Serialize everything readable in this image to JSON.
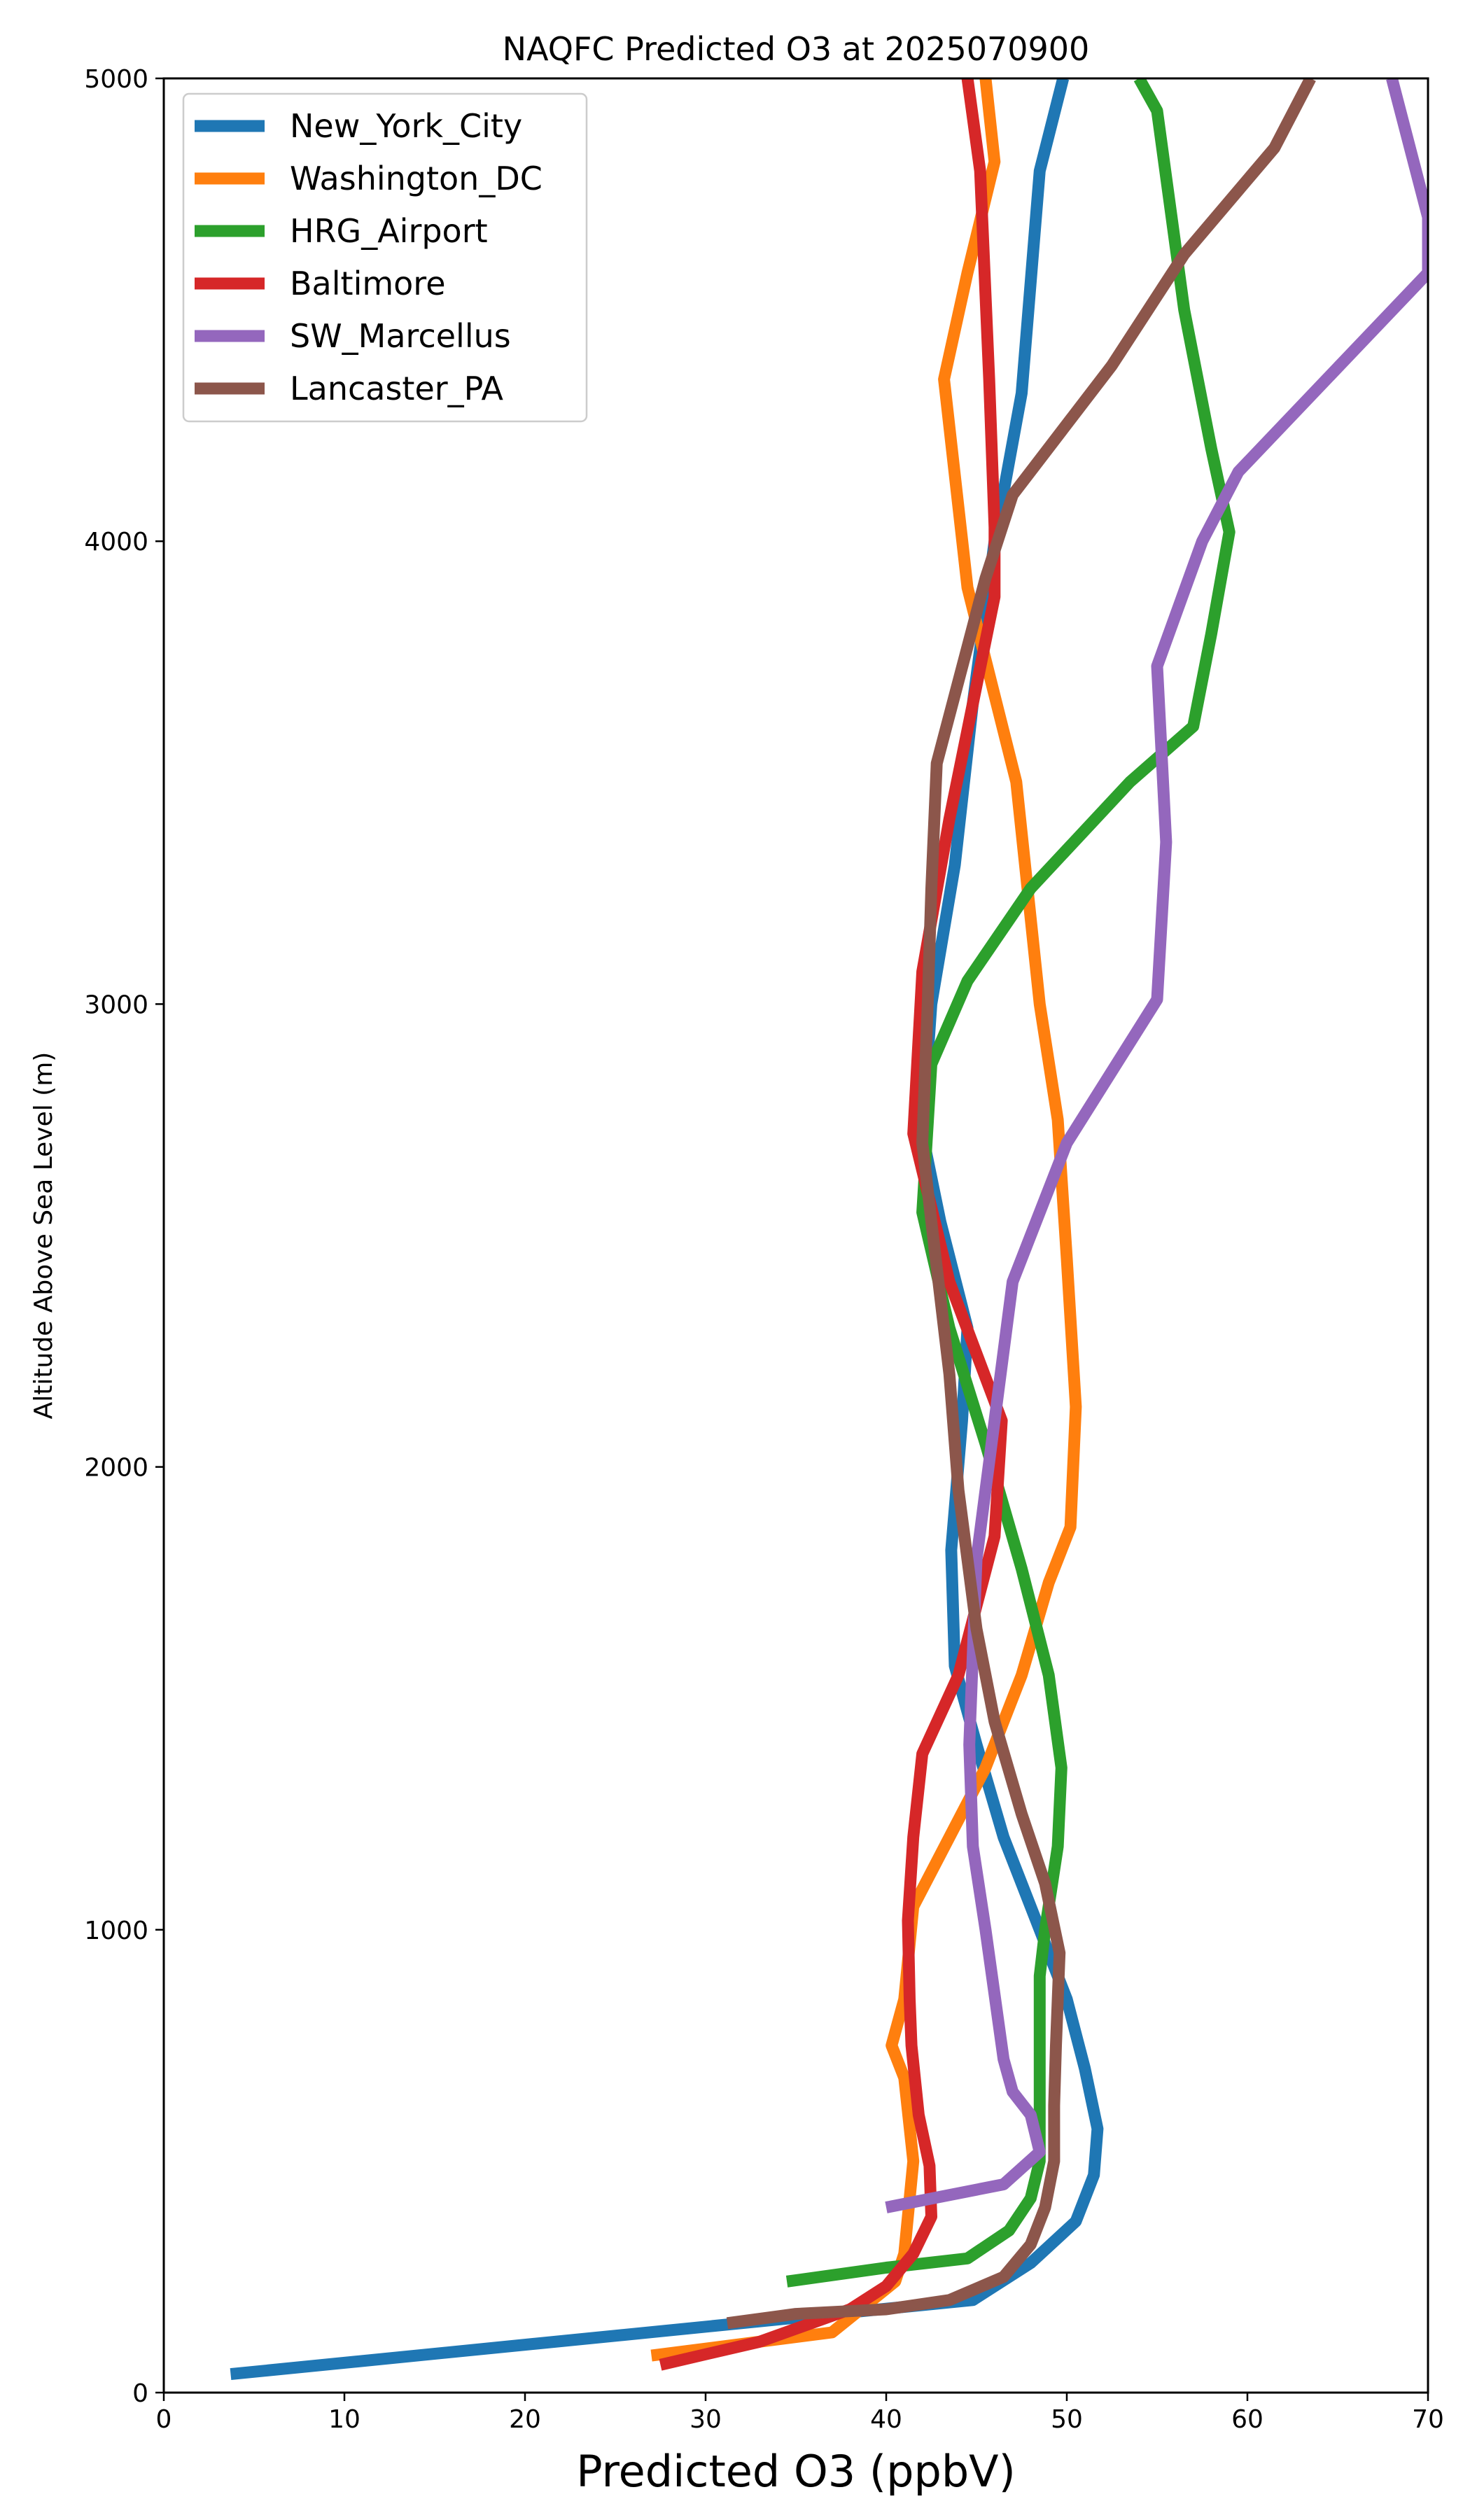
{
  "chart_data": {
    "type": "line",
    "title": "NAQFC Predicted O3 at 2025070900",
    "xlabel": "Predicted O3 (ppbV)",
    "ylabel": "Altitude Above Sea Level (m)",
    "xlim": [
      0,
      70
    ],
    "ylim": [
      0,
      5000
    ],
    "x_ticks": [
      0,
      10,
      20,
      30,
      40,
      50,
      60,
      70
    ],
    "y_ticks": [
      0,
      1000,
      2000,
      3000,
      4000,
      5000
    ],
    "grid": false,
    "legend_position": "top-left",
    "series": [
      {
        "name": "New_York_City",
        "color": "#1f77b4",
        "points": [
          [
            3.7,
            40
          ],
          [
            44.8,
            200
          ],
          [
            48.0,
            280
          ],
          [
            50.5,
            370
          ],
          [
            51.5,
            470
          ],
          [
            51.7,
            570
          ],
          [
            51.0,
            700
          ],
          [
            50.0,
            850
          ],
          [
            48.5,
            1000
          ],
          [
            46.5,
            1200
          ],
          [
            45.0,
            1400
          ],
          [
            43.8,
            1570
          ],
          [
            43.6,
            1820
          ],
          [
            44.2,
            2100
          ],
          [
            44.5,
            2300
          ],
          [
            43.0,
            2530
          ],
          [
            42.0,
            2720
          ],
          [
            42.5,
            3000
          ],
          [
            43.8,
            3300
          ],
          [
            44.8,
            3650
          ],
          [
            46.0,
            4000
          ],
          [
            47.5,
            4320
          ],
          [
            48.5,
            4800
          ],
          [
            49.8,
            5000
          ]
        ]
      },
      {
        "name": "Washington_DC",
        "color": "#ff7f0e",
        "points": [
          [
            27.0,
            80
          ],
          [
            37.0,
            130
          ],
          [
            40.5,
            240
          ],
          [
            41.0,
            300
          ],
          [
            41.5,
            500
          ],
          [
            41.0,
            680
          ],
          [
            40.3,
            750
          ],
          [
            41.0,
            850
          ],
          [
            41.5,
            1050
          ],
          [
            43.5,
            1200
          ],
          [
            45.5,
            1350
          ],
          [
            47.5,
            1550
          ],
          [
            49.0,
            1750
          ],
          [
            50.2,
            1870
          ],
          [
            50.5,
            2130
          ],
          [
            50.0,
            2450
          ],
          [
            49.5,
            2750
          ],
          [
            48.5,
            3000
          ],
          [
            47.2,
            3480
          ],
          [
            44.5,
            3900
          ],
          [
            43.2,
            4350
          ],
          [
            44.5,
            4580
          ],
          [
            46.0,
            4820
          ],
          [
            45.5,
            5000
          ]
        ]
      },
      {
        "name": "HRG_Airport",
        "color": "#2ca02c",
        "points": [
          [
            34.5,
            240
          ],
          [
            40.0,
            270
          ],
          [
            44.5,
            290
          ],
          [
            46.8,
            350
          ],
          [
            48.0,
            420
          ],
          [
            48.5,
            500
          ],
          [
            48.5,
            620
          ],
          [
            48.5,
            750
          ],
          [
            48.5,
            900
          ],
          [
            48.8,
            1000
          ],
          [
            49.5,
            1180
          ],
          [
            49.7,
            1350
          ],
          [
            49.0,
            1550
          ],
          [
            47.5,
            1780
          ],
          [
            45.5,
            2050
          ],
          [
            43.5,
            2300
          ],
          [
            42.0,
            2550
          ],
          [
            42.5,
            2870
          ],
          [
            44.5,
            3050
          ],
          [
            48.0,
            3250
          ],
          [
            53.5,
            3480
          ],
          [
            57.0,
            3600
          ],
          [
            58.0,
            3800
          ],
          [
            59.0,
            4020
          ],
          [
            58.0,
            4200
          ],
          [
            56.5,
            4500
          ],
          [
            55.0,
            4930
          ],
          [
            54.0,
            5000
          ]
        ]
      },
      {
        "name": "Baltimore",
        "color": "#d62728",
        "points": [
          [
            27.5,
            60
          ],
          [
            33.0,
            110
          ],
          [
            38.0,
            180
          ],
          [
            40.0,
            230
          ],
          [
            41.5,
            300
          ],
          [
            42.5,
            380
          ],
          [
            42.4,
            490
          ],
          [
            41.8,
            600
          ],
          [
            41.4,
            750
          ],
          [
            41.3,
            850
          ],
          [
            41.2,
            1020
          ],
          [
            41.5,
            1200
          ],
          [
            42.0,
            1380
          ],
          [
            44.0,
            1550
          ],
          [
            46.0,
            1850
          ],
          [
            46.4,
            2100
          ],
          [
            43.5,
            2400
          ],
          [
            41.5,
            2720
          ],
          [
            42.0,
            3070
          ],
          [
            43.5,
            3400
          ],
          [
            46.0,
            3880
          ],
          [
            46.0,
            4030
          ],
          [
            45.7,
            4350
          ],
          [
            45.2,
            4800
          ],
          [
            44.5,
            5000
          ]
        ]
      },
      {
        "name": "SW_Marcellus",
        "color": "#9467bd",
        "points": [
          [
            40.0,
            400
          ],
          [
            46.5,
            450
          ],
          [
            48.5,
            520
          ],
          [
            48.0,
            600
          ],
          [
            47.0,
            650
          ],
          [
            46.5,
            720
          ],
          [
            45.5,
            1000
          ],
          [
            44.8,
            1180
          ],
          [
            44.6,
            1400
          ],
          [
            45.0,
            1800
          ],
          [
            46.0,
            2100
          ],
          [
            47.0,
            2400
          ],
          [
            50.0,
            2700
          ],
          [
            55.0,
            3010
          ],
          [
            55.5,
            3350
          ],
          [
            55.0,
            3730
          ],
          [
            57.5,
            4000
          ],
          [
            59.5,
            4150
          ],
          [
            70.0,
            4580
          ],
          [
            70.0,
            4700
          ],
          [
            68.0,
            5000
          ]
        ]
      },
      {
        "name": "Lancaster_PA",
        "color": "#8c564b",
        "points": [
          [
            31.2,
            150
          ],
          [
            35.0,
            170
          ],
          [
            40.0,
            180
          ],
          [
            43.5,
            200
          ],
          [
            46.5,
            250
          ],
          [
            48.0,
            320
          ],
          [
            48.8,
            400
          ],
          [
            49.3,
            500
          ],
          [
            49.3,
            620
          ],
          [
            49.4,
            750
          ],
          [
            49.5,
            850
          ],
          [
            49.6,
            950
          ],
          [
            48.8,
            1100
          ],
          [
            47.5,
            1250
          ],
          [
            46.0,
            1450
          ],
          [
            45.0,
            1650
          ],
          [
            44.0,
            1950
          ],
          [
            43.5,
            2200
          ],
          [
            42.5,
            2530
          ],
          [
            42.0,
            2700
          ],
          [
            42.3,
            3000
          ],
          [
            42.5,
            3250
          ],
          [
            42.8,
            3520
          ],
          [
            45.5,
            3920
          ],
          [
            47.0,
            4100
          ],
          [
            52.5,
            4380
          ],
          [
            56.5,
            4620
          ],
          [
            61.5,
            4850
          ],
          [
            63.5,
            5000
          ]
        ]
      }
    ]
  }
}
